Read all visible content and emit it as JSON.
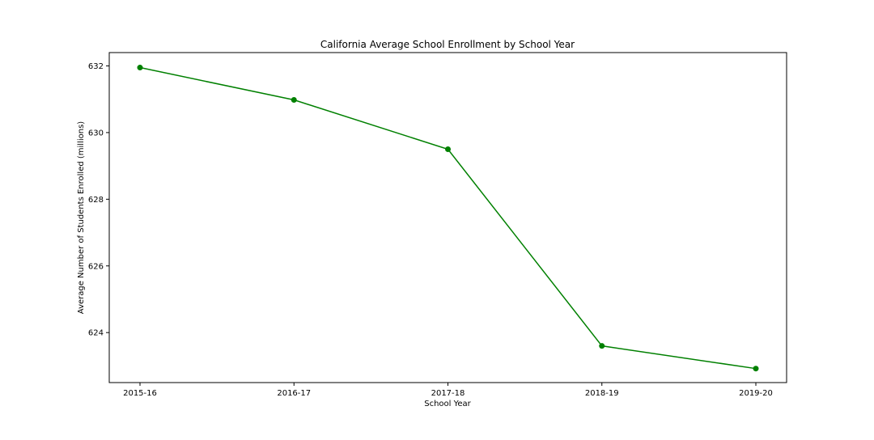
{
  "chart_data": {
    "type": "line",
    "title": "California Average School Enrollment by School Year",
    "xlabel": "School Year",
    "ylabel": "Average Number of Students Enrolled (millions)",
    "categories": [
      "2015-16",
      "2016-17",
      "2017-18",
      "2018-19",
      "2019-20"
    ],
    "series": [
      {
        "values": [
          631.95,
          630.98,
          629.5,
          623.6,
          622.92
        ],
        "color": "#008000",
        "marker": "circle"
      }
    ],
    "ylim": [
      622.5,
      632.4
    ],
    "yticks": [
      624,
      626,
      628,
      630,
      632
    ],
    "grid": false,
    "legend": "none"
  }
}
